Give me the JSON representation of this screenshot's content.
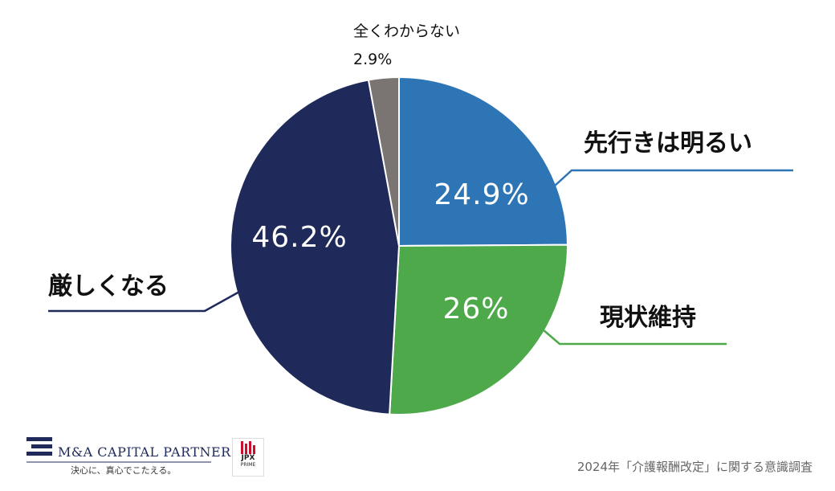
{
  "chart_data": {
    "type": "pie",
    "title": "",
    "categories": [
      "先行きは明るい",
      "現状維持",
      "厳しくなる",
      "全くわからない"
    ],
    "values": [
      24.9,
      26,
      46.2,
      2.9
    ],
    "value_labels": [
      "24.9%",
      "26%",
      "46.2%",
      "2.9%"
    ],
    "colors": [
      "#2e75b6",
      "#4ea94a",
      "#1f2a5a",
      "#7a7472"
    ],
    "start_angle": "12 o'clock",
    "direction": "clockwise",
    "legend": "none (callout labels)"
  },
  "footer": {
    "company_name": "M&A CAPITAL PARTNERS",
    "company_tagline": "決心に、真心でこたえる。",
    "jpx_label": "JPX",
    "jpx_sub": "PRIME",
    "source": "2024年「介護報酬改定」に関する意識調査"
  },
  "colors": {
    "logo": "#1f2a5a",
    "jpx_red": "#c8102e",
    "source_text": "#666666"
  }
}
